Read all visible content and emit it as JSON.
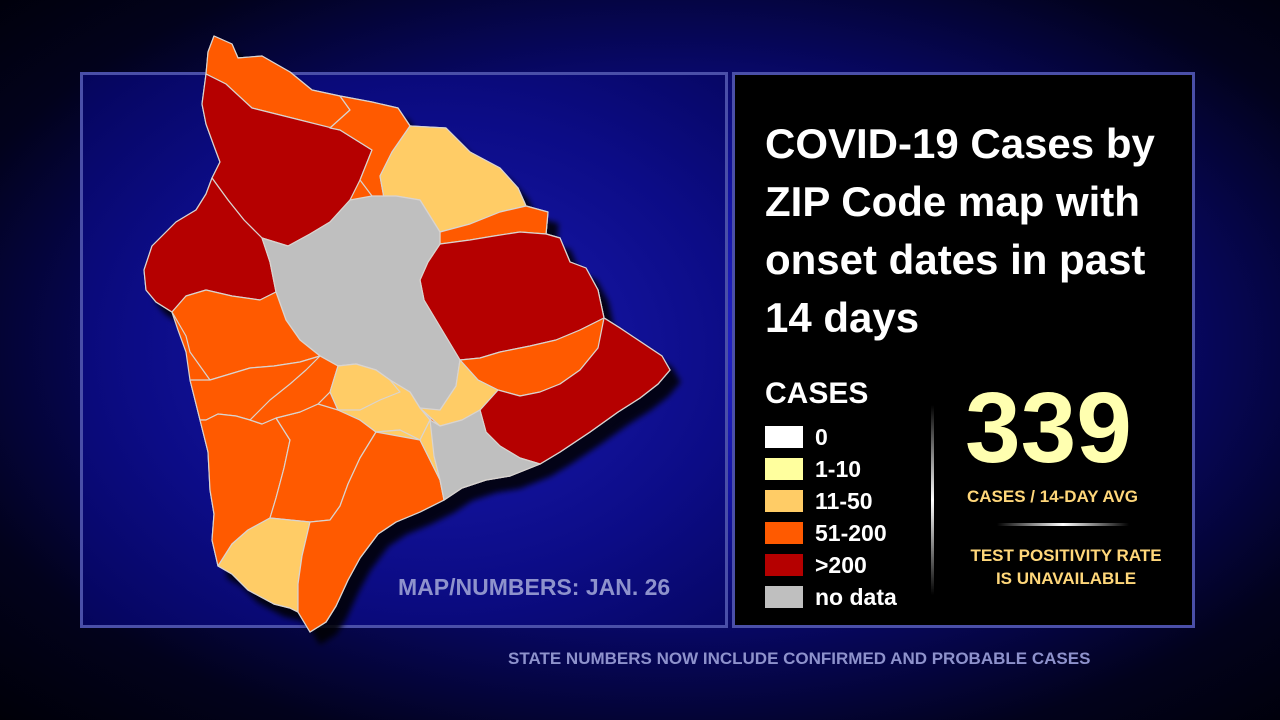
{
  "title": "COVID-19 Cases by ZIP Code map with onset dates in past 14 days",
  "legend": {
    "title": "CASES",
    "items": [
      {
        "label": "0",
        "color": "#ffffff"
      },
      {
        "label": "1-10",
        "color": "#ffff9e"
      },
      {
        "label": "11-50",
        "color": "#ffcc66"
      },
      {
        "label": "51-200",
        "color": "#ff5a00"
      },
      {
        "label": ">200",
        "color": "#b50000"
      },
      {
        "label": "no data",
        "color": "#bfbfbf"
      }
    ]
  },
  "stats": {
    "cases_value": "339",
    "cases_label": "CASES / 14-DAY AVG",
    "positivity_line1": "TEST POSITIVITY RATE",
    "positivity_line2": "IS UNAVAILABLE"
  },
  "map_date": "MAP/NUMBERS: JAN. 26",
  "footer": "STATE NUMBERS NOW INCLUDE CONFIRMED AND PROBABLE CASES",
  "colors": {
    "background": "#0a0a80",
    "panel_border": "#4a4fa8",
    "accent_number": "#ffffb0",
    "accent_label": "#ffd77a",
    "muted_text": "#8e92cc"
  }
}
